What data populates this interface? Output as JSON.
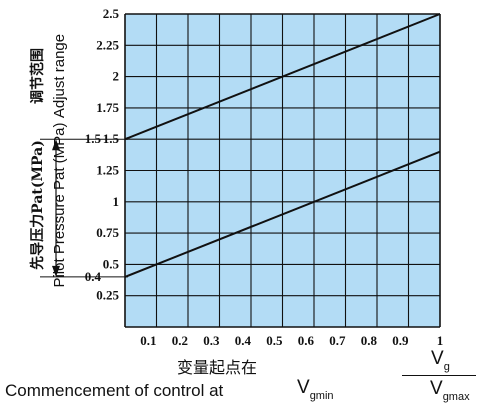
{
  "chart_data": {
    "type": "line",
    "title": "",
    "x": {
      "ticks": [
        "0.1",
        "0.2",
        "0.3",
        "0.4",
        "0.5",
        "0.6",
        "0.7",
        "0.8",
        "0.9",
        "1"
      ],
      "lim": [
        0,
        1
      ]
    },
    "y": {
      "ticks": [
        "0.25",
        "0.5",
        "0.75",
        "1",
        "1.25",
        "1.5",
        "1.75",
        "2",
        "2.25",
        "2.5"
      ],
      "lim": [
        0,
        2.5
      ]
    },
    "grid": true,
    "series": [
      {
        "values": [
          [
            0,
            1.5
          ],
          [
            1,
            2.5
          ]
        ]
      },
      {
        "values": [
          [
            0,
            0.4
          ],
          [
            1,
            1.4
          ]
        ]
      }
    ],
    "y_extra_labels": [
      "1.5",
      "0.4"
    ],
    "y_labels": {
      "range_cn": "调节范围",
      "range_en": "Adjust range",
      "pressure_cn": "先导压力Pat(MPa)",
      "pressure_en": "Pilot Pressure Pat (MPa)"
    },
    "x_labels": {
      "cn": "变量起点在",
      "en": "Commencement of control at",
      "v_symbol": "V",
      "v_sub_gmin": "gmin",
      "frac_num_sub": "g",
      "frac_den_sub": "gmax"
    },
    "colors": {
      "plot_bg": "#b3dcf5",
      "grid": "#111111",
      "line": "#111111"
    }
  }
}
